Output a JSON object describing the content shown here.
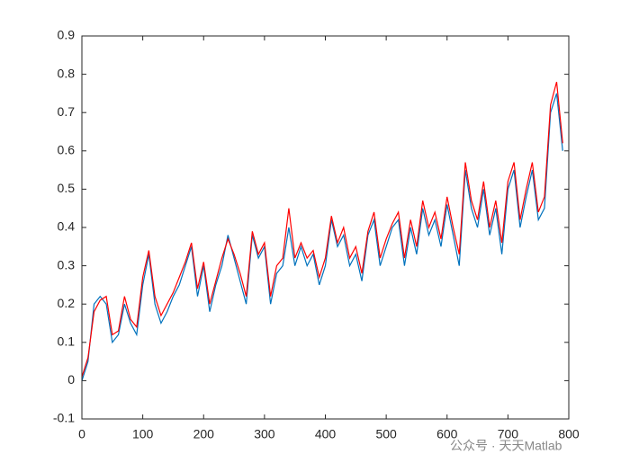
{
  "chart_data": {
    "type": "line",
    "x": [
      0,
      10,
      20,
      30,
      40,
      50,
      60,
      70,
      80,
      90,
      100,
      110,
      120,
      130,
      140,
      150,
      160,
      170,
      180,
      190,
      200,
      210,
      220,
      230,
      240,
      250,
      260,
      270,
      280,
      290,
      300,
      310,
      320,
      330,
      340,
      350,
      360,
      370,
      380,
      390,
      400,
      410,
      420,
      430,
      440,
      450,
      460,
      470,
      480,
      490,
      500,
      510,
      520,
      530,
      540,
      550,
      560,
      570,
      580,
      590,
      600,
      610,
      620,
      630,
      640,
      650,
      660,
      670,
      680,
      690,
      700,
      710,
      720,
      730,
      740,
      750,
      760,
      770,
      780,
      790
    ],
    "series": [
      {
        "color": "#0072bd",
        "values": [
          0.0,
          0.05,
          0.2,
          0.22,
          0.2,
          0.1,
          0.12,
          0.2,
          0.15,
          0.12,
          0.25,
          0.33,
          0.2,
          0.15,
          0.18,
          0.22,
          0.25,
          0.3,
          0.35,
          0.22,
          0.3,
          0.18,
          0.25,
          0.3,
          0.38,
          0.32,
          0.26,
          0.2,
          0.38,
          0.32,
          0.35,
          0.2,
          0.28,
          0.3,
          0.4,
          0.3,
          0.35,
          0.3,
          0.33,
          0.25,
          0.3,
          0.42,
          0.35,
          0.38,
          0.3,
          0.33,
          0.26,
          0.38,
          0.42,
          0.3,
          0.35,
          0.4,
          0.42,
          0.3,
          0.4,
          0.33,
          0.45,
          0.38,
          0.42,
          0.35,
          0.46,
          0.38,
          0.3,
          0.55,
          0.45,
          0.4,
          0.5,
          0.38,
          0.45,
          0.33,
          0.5,
          0.55,
          0.4,
          0.48,
          0.55,
          0.42,
          0.45,
          0.7,
          0.75,
          0.6
        ]
      },
      {
        "color": "#ff0000",
        "values": [
          0.01,
          0.06,
          0.18,
          0.21,
          0.22,
          0.12,
          0.13,
          0.22,
          0.16,
          0.14,
          0.27,
          0.34,
          0.22,
          0.17,
          0.2,
          0.23,
          0.27,
          0.31,
          0.36,
          0.24,
          0.31,
          0.2,
          0.26,
          0.32,
          0.37,
          0.33,
          0.28,
          0.22,
          0.39,
          0.33,
          0.36,
          0.22,
          0.3,
          0.32,
          0.45,
          0.32,
          0.36,
          0.32,
          0.34,
          0.27,
          0.32,
          0.43,
          0.36,
          0.4,
          0.32,
          0.35,
          0.28,
          0.39,
          0.44,
          0.32,
          0.37,
          0.41,
          0.44,
          0.32,
          0.42,
          0.35,
          0.47,
          0.4,
          0.44,
          0.37,
          0.48,
          0.4,
          0.33,
          0.57,
          0.47,
          0.42,
          0.52,
          0.4,
          0.47,
          0.36,
          0.52,
          0.57,
          0.42,
          0.5,
          0.57,
          0.44,
          0.48,
          0.72,
          0.78,
          0.62
        ]
      }
    ],
    "xlim": [
      0,
      800
    ],
    "xticks": [
      0,
      100,
      200,
      300,
      400,
      500,
      600,
      700,
      800
    ],
    "ylim": [
      -0.1,
      0.9
    ],
    "yticks": [
      -0.1,
      0,
      0.1,
      0.2,
      0.3,
      0.4,
      0.5,
      0.6,
      0.7,
      0.8,
      0.9
    ],
    "watermark": "公众号 · 天天Matlab"
  }
}
